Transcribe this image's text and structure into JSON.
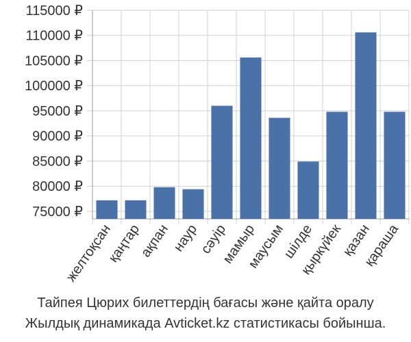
{
  "chart_data": {
    "type": "bar",
    "title": "",
    "xlabel": "",
    "ylabel": "",
    "ylim": [
      73500,
      115000
    ],
    "yticks": [
      75000,
      80000,
      85000,
      90000,
      95000,
      100000,
      105000,
      110000,
      115000
    ],
    "ytick_labels": [
      "75000 ₽",
      "80000 ₽",
      "85000 ₽",
      "90000 ₽",
      "95000 ₽",
      "100000 ₽",
      "105000 ₽",
      "110000 ₽",
      "115000 ₽"
    ],
    "categories": [
      "желтоқсан",
      "қаңтар",
      "ақпан",
      "наур",
      "сәуір",
      "мамыр",
      "маусым",
      "шілде",
      "қыркүйек",
      "қазан",
      "қараша"
    ],
    "values": [
      77200,
      77200,
      79800,
      79400,
      96000,
      105600,
      93600,
      84900,
      94800,
      110600,
      94800
    ],
    "bar_color": "#4a72a8",
    "grid": true
  },
  "caption": {
    "line1": "Тайпея Цюрих билеттердің бағасы және қайта оралу",
    "line2": "Жылдық динамикада Avticket.kz статистикасы бойынша."
  }
}
